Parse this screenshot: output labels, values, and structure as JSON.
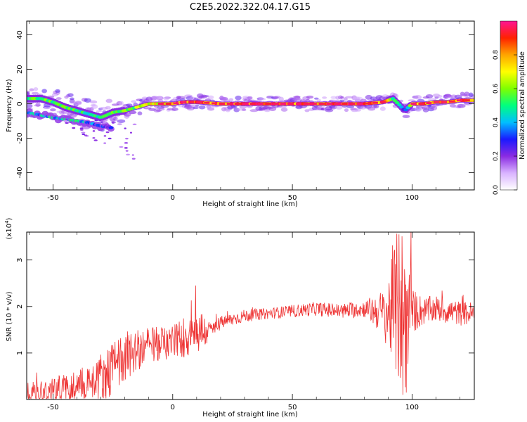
{
  "figure": {
    "title": "C2E5.2022.322.04.17.G15"
  },
  "chart_data": [
    {
      "type": "heatmap",
      "title": "C2E5.2022.322.04.17.G15",
      "xlabel": "Height of straight line (km)",
      "ylabel": "Frequency (Hz)",
      "xlim": [
        -61,
        126
      ],
      "ylim": [
        -50,
        48
      ],
      "xticks": [
        -50,
        0,
        50,
        100
      ],
      "yticks": [
        -40,
        -20,
        0,
        20,
        40
      ],
      "grid": false,
      "ridge": {
        "x": [
          -61,
          -55,
          -50,
          -45,
          -40,
          -35,
          -30,
          -25,
          -20,
          -15,
          -10,
          -5,
          0,
          5,
          10,
          20,
          30,
          40,
          50,
          60,
          70,
          80,
          88,
          92,
          95,
          97,
          100,
          105,
          110,
          115,
          120,
          126
        ],
        "y": [
          3,
          3,
          1,
          -2,
          -4,
          -6,
          -8,
          -5,
          -4,
          -2,
          0,
          0,
          0,
          1,
          1,
          0,
          0,
          0,
          0,
          0,
          0,
          0,
          1,
          3,
          -1,
          -4,
          0,
          0,
          1,
          1,
          2,
          2
        ],
        "amplitude": [
          0.6,
          0.55,
          0.6,
          0.55,
          0.55,
          0.5,
          0.5,
          0.55,
          0.6,
          0.65,
          0.7,
          0.8,
          0.85,
          0.9,
          0.88,
          0.92,
          0.92,
          0.9,
          0.92,
          0.9,
          0.92,
          0.9,
          0.85,
          0.6,
          0.4,
          0.3,
          0.8,
          0.85,
          0.85,
          0.85,
          0.85,
          0.85
        ]
      },
      "lower_branch": {
        "x": [
          -61,
          -50,
          -40,
          -35,
          -30,
          -25
        ],
        "y": [
          -5,
          -8,
          -10,
          -11,
          -13,
          -14
        ],
        "amplitude": [
          0.4,
          0.45,
          0.45,
          0.35,
          0.3,
          0.25
        ]
      },
      "colorbar": {
        "label": "Normalized spectral amplitude",
        "range": [
          0,
          1
        ],
        "ticks": [
          "0.0",
          "0.2",
          "0.4",
          "0.6",
          "0.8"
        ],
        "colors": [
          "#ffffff",
          "#d9b3ff",
          "#8a2be2",
          "#1a1aff",
          "#00bfff",
          "#00ff7f",
          "#7fff00",
          "#ffff00",
          "#ffa500",
          "#ff2200",
          "#ff1493"
        ]
      }
    },
    {
      "type": "line",
      "xlabel": "Height of straight line (km)",
      "ylabel": "SNR (10 * v/v)",
      "y_multiplier": "(x10",
      "y_multiplier_exp": "4",
      "y_multiplier_close": ")",
      "xlim": [
        -61,
        126
      ],
      "ylim": [
        0,
        3.6
      ],
      "xticks": [
        -50,
        0,
        50,
        100
      ],
      "yticks": [
        1,
        2,
        3
      ],
      "grid": false,
      "color": "#ee3333",
      "trend": {
        "x": [
          -61,
          -50,
          -40,
          -30,
          -25,
          -20,
          -10,
          0,
          5,
          10,
          15,
          20,
          30,
          40,
          50,
          60,
          70,
          80,
          90,
          93,
          95,
          97,
          100,
          105,
          110,
          115,
          120,
          126
        ],
        "y": [
          0.15,
          0.2,
          0.3,
          0.5,
          0.65,
          0.95,
          1.15,
          1.25,
          1.35,
          1.5,
          1.45,
          1.65,
          1.8,
          1.85,
          1.9,
          1.95,
          1.9,
          1.95,
          1.85,
          2.0,
          1.9,
          1.8,
          1.9,
          1.9,
          1.95,
          1.9,
          1.85,
          1.85
        ]
      },
      "noise": {
        "x": [
          -61,
          -40,
          -30,
          -25,
          -20,
          -15,
          0,
          10,
          15,
          20,
          40,
          80,
          88,
          92,
          95,
          97,
          100,
          105,
          126
        ],
        "amp": [
          0.25,
          0.35,
          0.5,
          0.6,
          0.55,
          0.45,
          0.35,
          0.6,
          0.25,
          0.15,
          0.12,
          0.18,
          0.5,
          1.2,
          2.0,
          1.8,
          0.5,
          0.3,
          0.25
        ]
      },
      "spikes": [
        {
          "x": 9.5,
          "y": 2.45
        },
        {
          "x": 94.5,
          "y": 3.55
        },
        {
          "x": 96.2,
          "y": 0.1
        },
        {
          "x": 99.5,
          "y": 3.6
        },
        {
          "x": 97.5,
          "y": 0.15
        }
      ]
    }
  ]
}
